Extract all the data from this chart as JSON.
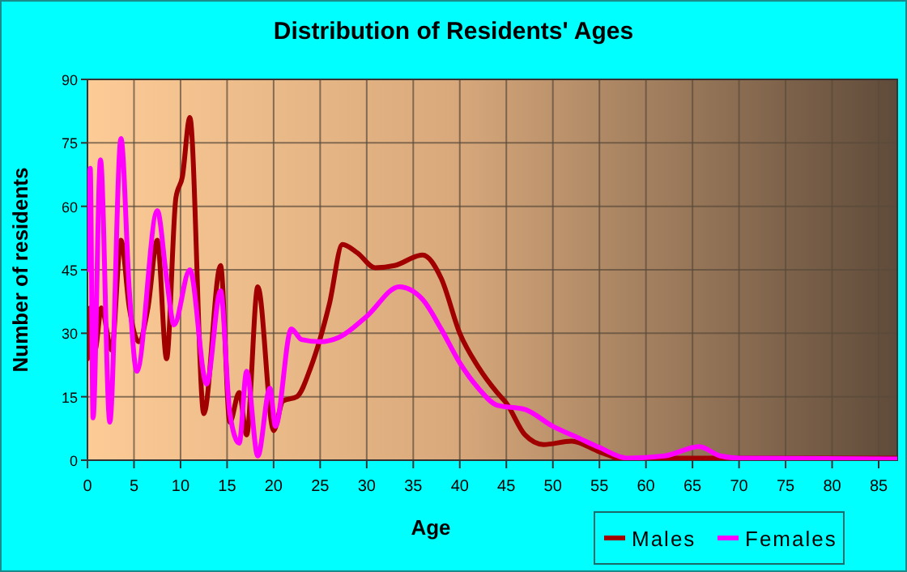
{
  "chart_data": {
    "type": "line",
    "title": "Distribution of Residents' Ages",
    "xlabel": "Age",
    "ylabel": "Number of residents",
    "xlim": [
      0,
      87
    ],
    "xticks": [
      0,
      5,
      10,
      15,
      20,
      25,
      30,
      35,
      40,
      45,
      50,
      55,
      60,
      65,
      70,
      75,
      80,
      85
    ],
    "ylim": [
      0,
      90
    ],
    "yticks": [
      0,
      15,
      30,
      45,
      60,
      75,
      90
    ],
    "grid": true,
    "legend": "bottom right",
    "series": [
      {
        "name": "Males",
        "color": "#a00000",
        "x": [
          0,
          0.3,
          0.8,
          1.5,
          2.6,
          3.6,
          4.5,
          5.5,
          6.5,
          7.5,
          8.5,
          9.5,
          10.2,
          11,
          12.5,
          14.3,
          15.3,
          16.3,
          17.1,
          18.3,
          20,
          21,
          22.5,
          24,
          26,
          27.4,
          29,
          30.9,
          33,
          36,
          38,
          40,
          42,
          44,
          45,
          47,
          49,
          52,
          55,
          58,
          60,
          65,
          70,
          80,
          87
        ],
        "values": [
          24,
          36,
          26,
          36,
          26,
          52,
          36,
          28,
          36,
          52,
          24,
          62,
          67,
          81,
          11,
          46,
          9,
          16,
          6,
          41,
          7,
          14,
          15,
          22,
          37,
          51,
          49,
          45.5,
          46,
          48.5,
          43,
          30,
          22,
          16,
          13.5,
          6,
          3.7,
          4.5,
          2,
          0,
          0.5,
          0.5,
          0.5,
          0.5,
          0.5
        ]
      },
      {
        "name": "Females",
        "color": "#ff00ff",
        "x": [
          0,
          0.3,
          0.6,
          1.4,
          2.4,
          3.6,
          4.5,
          5.3,
          7.5,
          8.5,
          9.3,
          11,
          12.8,
          14.3,
          15.3,
          16.3,
          17.1,
          18.3,
          19.6,
          20.2,
          21.9,
          23,
          25,
          27,
          30,
          33.5,
          36,
          38,
          40,
          42,
          44,
          47,
          50,
          53,
          55,
          58,
          62,
          65.7,
          68,
          70,
          87
        ],
        "values": [
          45,
          69,
          10,
          71,
          9,
          76,
          40,
          21,
          59,
          43,
          32,
          45,
          18,
          40,
          11,
          4,
          21,
          1,
          17,
          8,
          31,
          28.5,
          28,
          29,
          34,
          41,
          38,
          31,
          23,
          17,
          13,
          12,
          8,
          5,
          3,
          0.5,
          1,
          3.2,
          1,
          0.5,
          0.3
        ]
      }
    ]
  }
}
